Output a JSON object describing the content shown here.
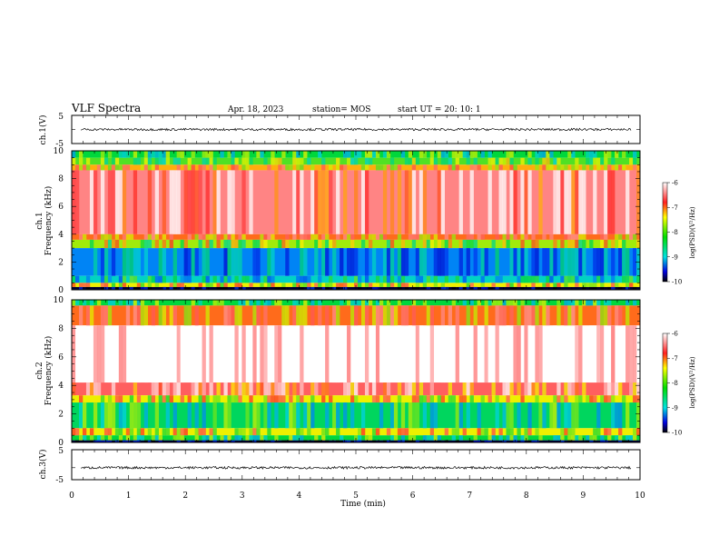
{
  "header": {
    "title": "VLF Spectra",
    "date": "Apr. 18, 2023",
    "station": "station= MOS",
    "start": "start UT =   20: 10: 1"
  },
  "chart_data": [
    {
      "type": "line",
      "ylabel": "ch.1(V)",
      "ylim": [
        -5,
        5
      ],
      "ytick_labels": [
        "5",
        "-5"
      ],
      "series": [
        {
          "values": [
            0,
            0
          ]
        }
      ]
    },
    {
      "type": "heatmap",
      "channel_label": "ch.1",
      "ylabel": "Frequency (kHz)",
      "ylim": [
        0,
        10
      ],
      "ytick_labels": [
        "0",
        "2",
        "4",
        "6",
        "8",
        "10"
      ],
      "colorbar": {
        "label": "log(PSD)(V²/Hz)",
        "range": [
          -10,
          -6
        ],
        "tick_labels": [
          "-6",
          "-7",
          "-8",
          "-9",
          "-10"
        ]
      },
      "bands": [
        {
          "from": 9.5,
          "to": 10.0,
          "level": -8.0
        },
        {
          "from": 9.0,
          "to": 9.5,
          "level": -7.8
        },
        {
          "from": 8.6,
          "to": 9.0,
          "level": -7.1
        },
        {
          "from": 4.0,
          "to": 8.6,
          "level": -6.4
        },
        {
          "from": 3.6,
          "to": 4.0,
          "level": -7.0
        },
        {
          "from": 3.0,
          "to": 3.6,
          "level": -7.6
        },
        {
          "from": 1.0,
          "to": 3.0,
          "level": -8.8
        },
        {
          "from": 0.5,
          "to": 1.0,
          "level": -8.4
        },
        {
          "from": 0.2,
          "to": 0.5,
          "level": -7.3
        },
        {
          "from": 0.0,
          "to": 0.2,
          "level": -9.9
        }
      ]
    },
    {
      "type": "heatmap",
      "channel_label": "ch.2",
      "ylabel": "Frequency (kHz)",
      "ylim": [
        0,
        10
      ],
      "ytick_labels": [
        "0",
        "2",
        "4",
        "6",
        "8",
        "10"
      ],
      "colorbar": {
        "label": "log(PSD)(V²/Hz)",
        "range": [
          -10,
          -6
        ],
        "tick_labels": [
          "-6",
          "-7",
          "-8",
          "-9",
          "-10"
        ]
      },
      "bands": [
        {
          "from": 9.6,
          "to": 10.0,
          "level": -8.0
        },
        {
          "from": 8.2,
          "to": 9.6,
          "level": -7.0
        },
        {
          "from": 4.2,
          "to": 8.2,
          "level": -5.9
        },
        {
          "from": 3.3,
          "to": 4.2,
          "level": -6.6
        },
        {
          "from": 2.8,
          "to": 3.3,
          "level": -7.3
        },
        {
          "from": 1.0,
          "to": 2.8,
          "level": -8.1
        },
        {
          "from": 0.5,
          "to": 1.0,
          "level": -7.3
        },
        {
          "from": 0.15,
          "to": 0.5,
          "level": -8.0
        },
        {
          "from": 0.0,
          "to": 0.15,
          "level": -9.9
        }
      ]
    },
    {
      "type": "line",
      "ylabel": "ch.3(V)",
      "ylim": [
        -5,
        5
      ],
      "ytick_labels": [
        "5",
        "-5"
      ],
      "series": [
        {
          "values": [
            -1,
            -1
          ]
        }
      ]
    }
  ],
  "x_axis": {
    "label": "Time (min)",
    "xlim": [
      0,
      10
    ],
    "tick_labels": [
      "0",
      "1",
      "2",
      "3",
      "4",
      "5",
      "6",
      "7",
      "8",
      "9",
      "10"
    ]
  }
}
